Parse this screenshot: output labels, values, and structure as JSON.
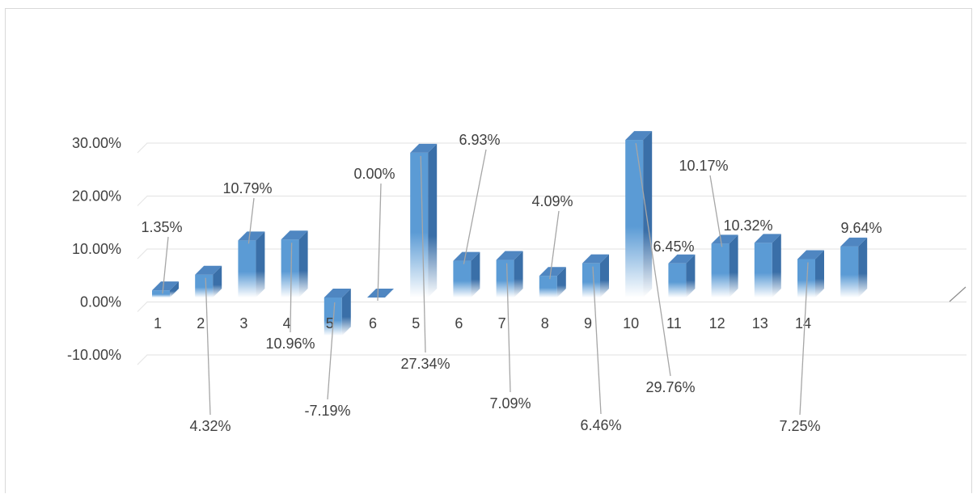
{
  "chart_data": {
    "type": "bar",
    "title": "",
    "xlabel": "",
    "ylabel": "",
    "ylim": [
      -10,
      30
    ],
    "yticks": [
      "30.00%",
      "20.00%",
      "10.00%",
      "0.00%",
      "-10.00%"
    ],
    "ytick_values": [
      30,
      20,
      10,
      0,
      -10
    ],
    "categories": [
      "1",
      "2",
      "3",
      "4",
      "5",
      "6",
      "5",
      "6",
      "7",
      "8",
      "9",
      "10",
      "11",
      "12",
      "13",
      "14",
      ""
    ],
    "values": [
      1.35,
      4.32,
      10.79,
      10.96,
      -7.19,
      0.0,
      27.34,
      6.93,
      7.09,
      4.09,
      6.46,
      29.76,
      6.45,
      10.17,
      10.32,
      7.25,
      9.64
    ],
    "data_labels": [
      "1.35%",
      "4.32%",
      "10.79%",
      "10.96%",
      "-7.19%",
      "0.00%",
      "27.34%",
      "6.93%",
      "7.09%",
      "4.09%",
      "6.46%",
      "29.76%",
      "6.45%",
      "10.17%",
      "10.32%",
      "7.25%",
      "9.64%"
    ],
    "grid": true,
    "legend": "none",
    "colors": {
      "front": "#5b9bd5",
      "side": "#3a6fa8",
      "top": "#4f86c1",
      "grid": "#e6e6e6",
      "leader": "#a6a6a6",
      "text": "#404040"
    }
  }
}
